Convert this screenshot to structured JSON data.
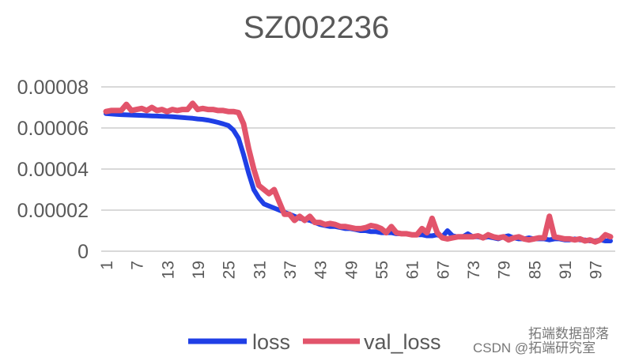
{
  "chart_data": {
    "type": "line",
    "title": "SZ002236",
    "xlabel": "",
    "ylabel": "",
    "ylim": [
      0,
      8e-05
    ],
    "yticks": [
      "0",
      "0.00002",
      "0.00004",
      "0.00006",
      "0.00008"
    ],
    "ytick_values": [
      0,
      2e-05,
      4e-05,
      6e-05,
      8e-05
    ],
    "xticks": [
      "1",
      "7",
      "13",
      "19",
      "25",
      "31",
      "37",
      "43",
      "49",
      "55",
      "61",
      "67",
      "73",
      "79",
      "85",
      "91",
      "97"
    ],
    "xlim": [
      1,
      100
    ],
    "grid": true,
    "legend_position": "bottom",
    "series": [
      {
        "name": "loss",
        "color": "#1f3fe6",
        "values": [
          6.7e-05,
          6.68e-05,
          6.66e-05,
          6.65e-05,
          6.64e-05,
          6.63e-05,
          6.62e-05,
          6.61e-05,
          6.6e-05,
          6.59e-05,
          6.58e-05,
          6.57e-05,
          6.56e-05,
          6.55e-05,
          6.53e-05,
          6.51e-05,
          6.49e-05,
          6.47e-05,
          6.44e-05,
          6.42e-05,
          6.38e-05,
          6.33e-05,
          6.27e-05,
          6.2e-05,
          6.12e-05,
          5.9e-05,
          5.5e-05,
          4.7e-05,
          3.8e-05,
          3e-05,
          2.6e-05,
          2.3e-05,
          2.2e-05,
          2.1e-05,
          2e-05,
          1.9e-05,
          1.8e-05,
          1.7e-05,
          1.6e-05,
          1.55e-05,
          1.5e-05,
          1.4e-05,
          1.3e-05,
          1.25e-05,
          1.2e-05,
          1.2e-05,
          1.15e-05,
          1.1e-05,
          1.1e-05,
          1.05e-05,
          1e-05,
          1e-05,
          9.5e-06,
          9.5e-06,
          9e-06,
          9e-06,
          9e-06,
          8.5e-06,
          8.5e-06,
          8.5e-06,
          8e-06,
          8e-06,
          8e-06,
          7.5e-06,
          7.5e-06,
          8e-06,
          7e-06,
          1e-05,
          7.5e-06,
          7e-06,
          7e-06,
          8.5e-06,
          7e-06,
          7e-06,
          6.5e-06,
          7e-06,
          6.5e-06,
          6e-06,
          7e-06,
          7.5e-06,
          6.5e-06,
          6e-06,
          6e-06,
          6.5e-06,
          6e-06,
          6e-06,
          6e-06,
          5.5e-06,
          6e-06,
          6e-06,
          5.5e-06,
          5.5e-06,
          6e-06,
          5.5e-06,
          5.5e-06,
          5e-06,
          5e-06,
          5.5e-06,
          5e-06,
          5e-06
        ]
      },
      {
        "name": "val_loss",
        "color": "#e2546b",
        "values": [
          6.8e-05,
          6.85e-05,
          6.85e-05,
          6.85e-05,
          7.15e-05,
          6.85e-05,
          6.9e-05,
          6.95e-05,
          6.85e-05,
          7e-05,
          6.85e-05,
          6.9e-05,
          6.8e-05,
          6.9e-05,
          6.85e-05,
          6.9e-05,
          6.9e-05,
          7.2e-05,
          6.9e-05,
          6.95e-05,
          6.9e-05,
          6.9e-05,
          6.85e-05,
          6.85e-05,
          6.8e-05,
          6.8e-05,
          6.75e-05,
          6.2e-05,
          5e-05,
          4e-05,
          3.2e-05,
          3e-05,
          2.8e-05,
          3e-05,
          2.4e-05,
          1.8e-05,
          1.8e-05,
          1.5e-05,
          1.7e-05,
          1.5e-05,
          1.7e-05,
          1.4e-05,
          1.4e-05,
          1.3e-05,
          1.35e-05,
          1.3e-05,
          1.2e-05,
          1.2e-05,
          1.15e-05,
          1.1e-05,
          1.1e-05,
          1.15e-05,
          1.25e-05,
          1.2e-05,
          1.1e-05,
          9e-06,
          1.2e-05,
          9e-06,
          8.5e-06,
          8.5e-06,
          8e-06,
          8e-06,
          1.1e-05,
          9e-06,
          1.6e-05,
          9e-06,
          6.5e-06,
          6e-06,
          6.5e-06,
          7e-06,
          7e-06,
          7e-06,
          7e-06,
          7.5e-06,
          6.5e-06,
          8e-06,
          7e-06,
          6.5e-06,
          7e-06,
          5.5e-06,
          6.5e-06,
          7e-06,
          6e-06,
          5.5e-06,
          6e-06,
          6.5e-06,
          6.5e-06,
          1.7e-05,
          7e-06,
          6.5e-06,
          6e-06,
          6e-06,
          5.5e-06,
          6e-06,
          5e-06,
          5.5e-06,
          4.5e-06,
          5.5e-06,
          8e-06,
          7e-06
        ]
      }
    ]
  },
  "watermark": {
    "line1": "拓端数据部落",
    "line2": "CSDN @拓端研究室"
  }
}
